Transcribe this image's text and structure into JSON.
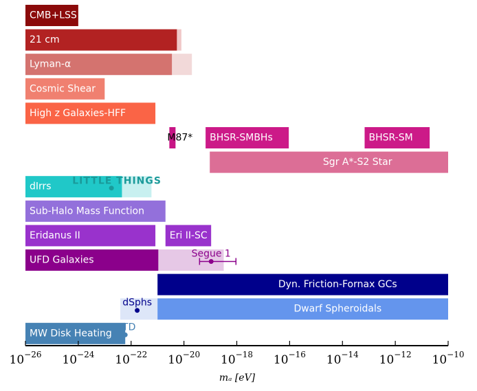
{
  "chart_data": {
    "type": "range-bar",
    "xlabel": "mₐ [eV]",
    "xscale": "log",
    "xlim": [
      1e-26,
      1e-10
    ],
    "xticks": [
      {
        "value": 1e-26,
        "label": "10",
        "exponent": "−26"
      },
      {
        "value": 1e-24,
        "label": "10",
        "exponent": "−24"
      },
      {
        "value": 1e-22,
        "label": "10",
        "exponent": "−22"
      },
      {
        "value": 1e-20,
        "label": "10",
        "exponent": "−20"
      },
      {
        "value": 1e-18,
        "label": "10",
        "exponent": "−18"
      },
      {
        "value": 1e-16,
        "label": "10",
        "exponent": "−16"
      },
      {
        "value": 1e-14,
        "label": "10",
        "exponent": "−14"
      },
      {
        "value": 1e-12,
        "label": "10",
        "exponent": "−12"
      },
      {
        "value": 1e-10,
        "label": "10",
        "exponent": "−10"
      }
    ],
    "rows": [
      {
        "segments": [
          {
            "label": "CMB+LSS",
            "lo": 1e-26,
            "hi": 1e-24,
            "color": "#8b0a0a"
          }
        ]
      },
      {
        "segments": [
          {
            "lo": 1e-26,
            "hi": 8e-21,
            "color": "#f0c8c8"
          },
          {
            "label": "21 cm",
            "lo": 1e-26,
            "hi": 5.4e-21,
            "color": "#b22222"
          }
        ]
      },
      {
        "segments": [
          {
            "lo": 1e-26,
            "hi": 2e-20,
            "color": "#f2d9d9"
          },
          {
            "label": "Lyman-α",
            "lo": 1e-26,
            "hi": 3.5e-21,
            "color": "#d4736f"
          }
        ]
      },
      {
        "segments": [
          {
            "label": "Cosmic Shear",
            "lo": 1e-26,
            "hi": 1e-23,
            "color": "#f08070"
          }
        ]
      },
      {
        "segments": [
          {
            "label": "High z Galaxies-HFF",
            "lo": 1e-26,
            "hi": 8.3e-22,
            "color": "#fa6446"
          }
        ]
      },
      {
        "segments": [
          {
            "label": "M87*",
            "lo": 2.8e-21,
            "hi": 4.8e-21,
            "color": "#c71585"
          },
          {
            "label": "BHSR-SMBHs",
            "lo": 6.6e-20,
            "hi": 9.3e-17,
            "color": "#cc1a88"
          },
          {
            "label": "BHSR-SM",
            "lo": 6.9e-14,
            "hi": 2e-11,
            "color": "#cc1a88"
          }
        ]
      },
      {
        "segments": [
          {
            "label": "Sgr A*-S2 Star",
            "lo": 9.5e-20,
            "hi": 1e-10,
            "color": "#dc6e96"
          }
        ]
      },
      {
        "segments": [
          {
            "lo": 1e-26,
            "hi": 5.9e-22,
            "color": "#c8f0f0"
          },
          {
            "label": "dIrrs",
            "lo": 1e-26,
            "hi": 4.5e-23,
            "color": "#20c8c8"
          }
        ]
      },
      {
        "segments": [
          {
            "label": "Sub-Halo Mass Function",
            "lo": 1e-26,
            "hi": 2e-21,
            "color": "#9370db"
          }
        ]
      },
      {
        "segments": [
          {
            "label": "Eridanus II",
            "lo": 1e-26,
            "hi": 8.3e-22,
            "color": "#9932cc"
          },
          {
            "label": "Eri II-SC",
            "lo": 2e-21,
            "hi": 1.07e-19,
            "color": "#9932cc"
          }
        ]
      },
      {
        "segments": [
          {
            "lo": 1e-26,
            "hi": 3.2e-19,
            "color": "#e6c8e6"
          },
          {
            "label": "UFD Galaxies",
            "lo": 1e-26,
            "hi": 1.07e-21,
            "color": "#8b008b"
          }
        ]
      },
      {
        "segments": [
          {
            "label": "Dyn. Friction-Fornax GCs",
            "lo": 1e-21,
            "hi": 1e-10,
            "color": "#00008b"
          }
        ]
      },
      {
        "segments": [
          {
            "lo": 3.9e-23,
            "hi": 1e-21,
            "color": "#dde6f8"
          },
          {
            "label": "Dwarf Spheroidals",
            "lo": 1e-21,
            "hi": 1e-10,
            "color": "#6495ed"
          }
        ]
      },
      {
        "segments": [
          {
            "label": "MW Disk Heating",
            "lo": 1e-26,
            "hi": 6e-23,
            "color": "#4682b4"
          }
        ]
      }
    ],
    "points": [
      {
        "row": 7,
        "label": "LITTLE THINGS",
        "x": 1.8e-23,
        "color": "#1a9a9a"
      },
      {
        "row": 10,
        "label": "Segue 1",
        "x": 1.07e-19,
        "err": [
          3.9e-20,
          9.3e-19
        ],
        "color": "#8b008b"
      },
      {
        "row": 12,
        "label": "dSphs",
        "x": 1.7e-22,
        "color": "#00008b"
      },
      {
        "row": 13,
        "label": "OTD",
        "x": 6e-23,
        "color": "#4682b4"
      }
    ]
  }
}
